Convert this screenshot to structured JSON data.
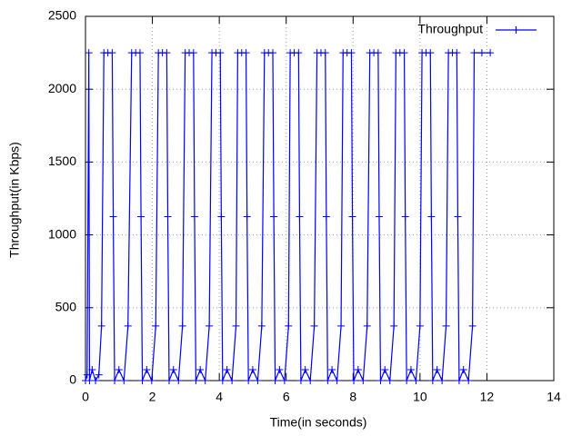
{
  "chart_data": {
    "type": "line",
    "x_label": "Time(in seconds)",
    "y_label": "Throughput(in Kbps)",
    "xlim": [
      0,
      14
    ],
    "xticks": [
      0,
      2,
      4,
      6,
      8,
      10,
      12,
      14
    ],
    "ylim": [
      0,
      2500
    ],
    "yticks": [
      0,
      500,
      1000,
      1500,
      2000,
      2500
    ],
    "grid": true,
    "legend": "top-right",
    "x": [
      0,
      0.05,
      0.1,
      0.12,
      0.2,
      0.3,
      0.4,
      0.48,
      0.55,
      0.67,
      0.8,
      0.83,
      0.87,
      1.0,
      1.15,
      1.27,
      1.38,
      1.5,
      1.63,
      1.66,
      1.7,
      1.83,
      1.98,
      2.1,
      2.18,
      2.3,
      2.43,
      2.46,
      2.5,
      2.63,
      2.78,
      2.9,
      2.98,
      3.1,
      3.23,
      3.26,
      3.3,
      3.43,
      3.58,
      3.7,
      3.78,
      3.9,
      4.03,
      4.06,
      4.1,
      4.23,
      4.38,
      4.5,
      4.55,
      4.67,
      4.8,
      4.83,
      4.87,
      5.0,
      5.15,
      5.27,
      5.35,
      5.47,
      5.6,
      5.63,
      5.67,
      5.8,
      5.95,
      6.07,
      6.12,
      6.24,
      6.37,
      6.4,
      6.44,
      6.57,
      6.72,
      6.84,
      6.92,
      7.04,
      7.17,
      7.2,
      7.24,
      7.37,
      7.52,
      7.64,
      7.7,
      7.82,
      7.95,
      7.98,
      8.02,
      8.15,
      8.3,
      8.42,
      8.5,
      8.62,
      8.75,
      8.78,
      8.82,
      8.95,
      9.1,
      9.22,
      9.28,
      9.4,
      9.53,
      9.56,
      9.6,
      9.73,
      9.88,
      10.0,
      10.06,
      10.18,
      10.31,
      10.34,
      10.38,
      10.51,
      10.66,
      10.78,
      10.85,
      10.97,
      11.1,
      11.13,
      11.17,
      11.3,
      11.45,
      11.57,
      11.62,
      11.85,
      12.1
    ],
    "series": [
      {
        "name": "Throughput",
        "color": "#0000ff",
        "values": [
          0,
          40,
          2250,
          0,
          75,
          0,
          40,
          375,
          2250,
          2250,
          2250,
          1125,
          0,
          75,
          0,
          375,
          2250,
          2250,
          2250,
          1125,
          0,
          75,
          0,
          375,
          2250,
          2250,
          2250,
          1125,
          0,
          75,
          0,
          375,
          2250,
          2250,
          2250,
          1125,
          0,
          75,
          0,
          375,
          2250,
          2250,
          2250,
          1125,
          0,
          75,
          0,
          375,
          2250,
          2250,
          2250,
          1125,
          0,
          75,
          0,
          375,
          2250,
          2250,
          2250,
          1125,
          0,
          75,
          0,
          375,
          2250,
          2250,
          2250,
          1125,
          0,
          75,
          0,
          375,
          2250,
          2250,
          2250,
          1125,
          0,
          75,
          0,
          375,
          2250,
          2250,
          2250,
          1125,
          0,
          75,
          0,
          375,
          2250,
          2250,
          2250,
          1125,
          0,
          75,
          0,
          375,
          2250,
          2250,
          2250,
          1125,
          0,
          75,
          0,
          375,
          2250,
          2250,
          2250,
          1125,
          0,
          75,
          0,
          375,
          2250,
          2250,
          2250,
          1125,
          0,
          75,
          0,
          375,
          2250,
          2250,
          2250
        ]
      }
    ]
  }
}
